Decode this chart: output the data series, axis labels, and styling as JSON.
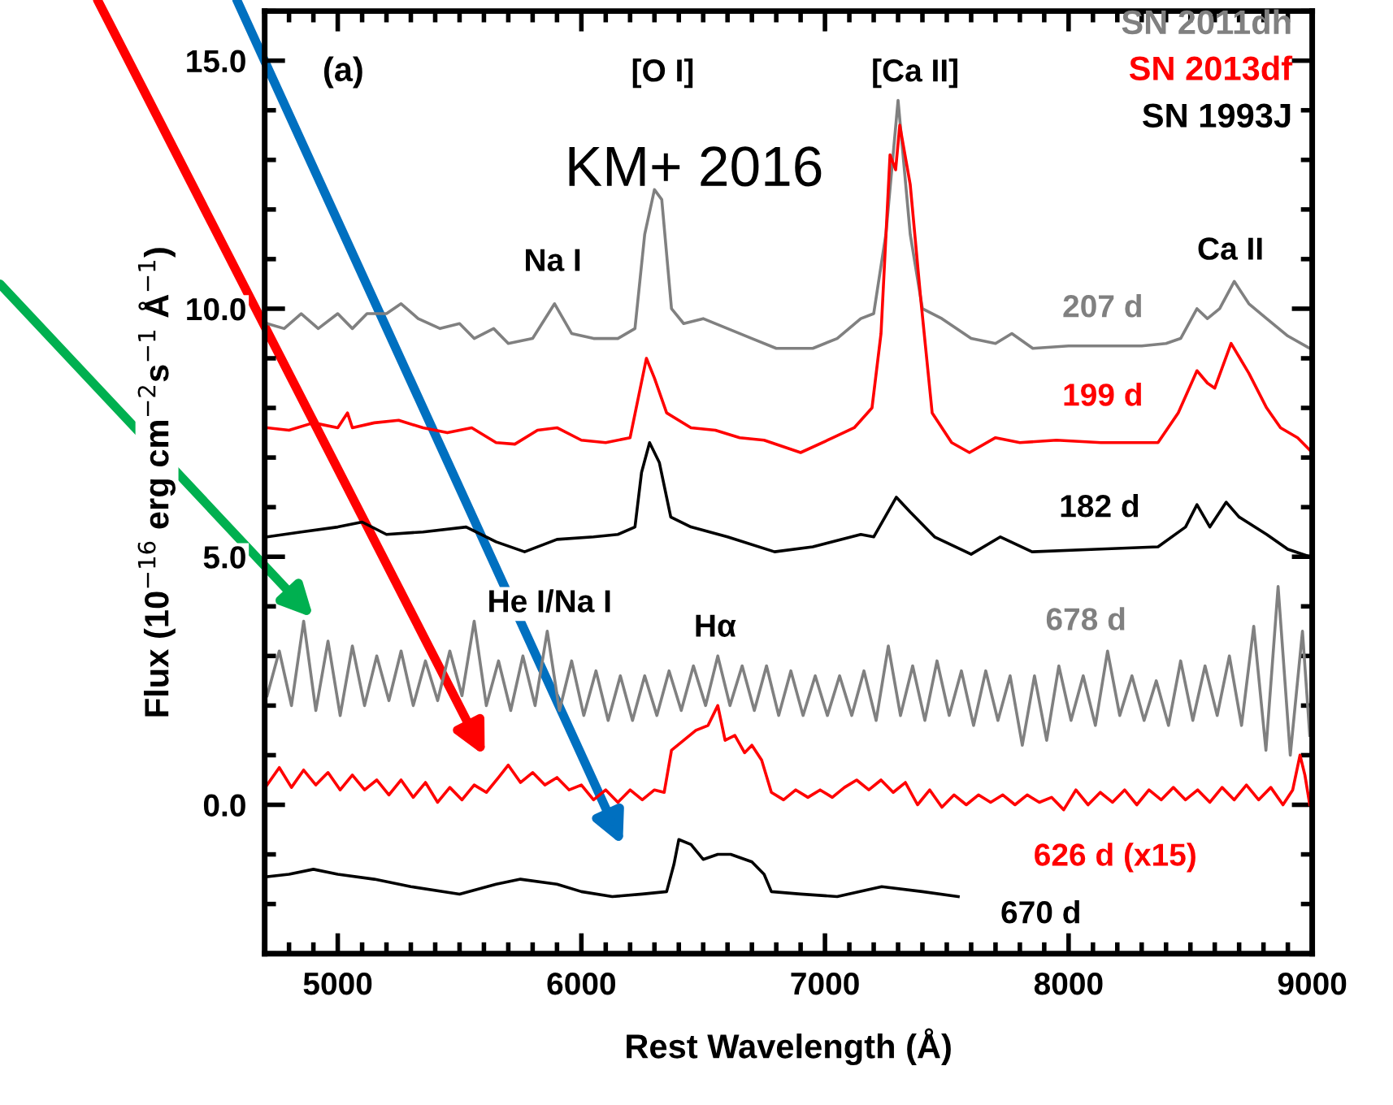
{
  "chart_data": {
    "type": "line",
    "xlabel": "Rest Wavelength (Å)",
    "ylabel": "Flux (10$^{−16}$ erg cm$^{−2}$s$^{−1}$ Å$^{−1}$)",
    "xlim": [
      4700,
      9000
    ],
    "xticks": [
      5000,
      6000,
      7000,
      8000,
      9000
    ],
    "ylim": [
      -3,
      16
    ],
    "yticks": [
      {
        "value": 0,
        "label": "0.0"
      },
      {
        "value": 5,
        "label": "5.0"
      },
      {
        "value": 10,
        "label": "10.0"
      },
      {
        "value": 15,
        "label": "15.0"
      }
    ],
    "grid": false,
    "series": [
      {
        "name": "207 d",
        "color": "#808080",
        "x": [
          4710,
          4780,
          4850,
          4920,
          5000,
          5060,
          5120,
          5200,
          5260,
          5330,
          5420,
          5500,
          5560,
          5640,
          5700,
          5800,
          5890,
          5960,
          6050,
          6150,
          6220,
          6260,
          6300,
          6330,
          6370,
          6420,
          6500,
          6600,
          6700,
          6800,
          6950,
          7050,
          7147,
          7200,
          7250,
          7300,
          7350,
          7400,
          7480,
          7600,
          7700,
          7767,
          7853,
          8000,
          8133,
          8300,
          8400,
          8460,
          8527,
          8570,
          8620,
          8680,
          8740,
          8813,
          8900,
          8990
        ],
        "values": [
          9.7,
          9.6,
          9.9,
          9.6,
          9.9,
          9.6,
          9.9,
          9.9,
          10.1,
          9.8,
          9.6,
          9.7,
          9.4,
          9.6,
          9.3,
          9.4,
          10.1,
          9.5,
          9.4,
          9.4,
          9.6,
          11.5,
          12.4,
          12.2,
          10.0,
          9.7,
          9.8,
          9.6,
          9.4,
          9.2,
          9.2,
          9.4,
          9.8,
          9.9,
          11.5,
          14.2,
          11.5,
          10.0,
          9.8,
          9.4,
          9.3,
          9.5,
          9.2,
          9.25,
          9.25,
          9.25,
          9.3,
          9.4,
          10.0,
          9.8,
          10.0,
          10.55,
          10.1,
          9.8,
          9.45,
          9.2
        ]
      },
      {
        "name": "199 d",
        "color": "#ff0000",
        "x": [
          4710,
          4800,
          4900,
          5000,
          5040,
          5060,
          5150,
          5250,
          5350,
          5450,
          5550,
          5650,
          5727,
          5820,
          5900,
          6000,
          6100,
          6200,
          6267,
          6300,
          6350,
          6450,
          6550,
          6650,
          6750,
          6900,
          7033,
          7120,
          7193,
          7230,
          7267,
          7290,
          7307,
          7350,
          7393,
          7440,
          7520,
          7593,
          7700,
          7800,
          7950,
          8133,
          8250,
          8367,
          8450,
          8527,
          8570,
          8600,
          8667,
          8740,
          8813,
          8870,
          8940,
          8990
        ],
        "values": [
          7.6,
          7.55,
          7.7,
          7.6,
          7.9,
          7.6,
          7.7,
          7.75,
          7.6,
          7.5,
          7.6,
          7.3,
          7.27,
          7.55,
          7.6,
          7.35,
          7.3,
          7.4,
          9.0,
          8.6,
          7.9,
          7.6,
          7.55,
          7.4,
          7.35,
          7.1,
          7.4,
          7.6,
          8.0,
          9.5,
          13.1,
          12.8,
          13.7,
          12.5,
          10.2,
          7.9,
          7.3,
          7.1,
          7.4,
          7.3,
          7.35,
          7.3,
          7.3,
          7.3,
          7.9,
          8.75,
          8.5,
          8.4,
          9.3,
          8.7,
          8.0,
          7.6,
          7.4,
          7.15
        ]
      },
      {
        "name": "182 d",
        "color": "#000000",
        "x": [
          4710,
          4850,
          5000,
          5100,
          5200,
          5350,
          5527,
          5650,
          5767,
          5900,
          6050,
          6150,
          6220,
          6247,
          6280,
          6320,
          6367,
          6450,
          6600,
          6793,
          6950,
          7147,
          7200,
          7293,
          7350,
          7450,
          7600,
          7720,
          7850,
          8113,
          8367,
          8480,
          8527,
          8580,
          8647,
          8700,
          8813,
          8900,
          8990
        ],
        "values": [
          5.4,
          5.5,
          5.6,
          5.7,
          5.45,
          5.5,
          5.6,
          5.3,
          5.1,
          5.35,
          5.4,
          5.45,
          5.6,
          6.7,
          7.3,
          6.9,
          5.8,
          5.6,
          5.4,
          5.1,
          5.2,
          5.45,
          5.4,
          6.2,
          5.9,
          5.4,
          5.05,
          5.4,
          5.1,
          5.15,
          5.2,
          5.6,
          6.05,
          5.6,
          6.1,
          5.8,
          5.45,
          5.15,
          5.0
        ]
      },
      {
        "name": "678 d",
        "color": "#808080",
        "x": [
          4710,
          4760,
          4810,
          4860,
          4910,
          4960,
          5010,
          5060,
          5110,
          5160,
          5210,
          5260,
          5310,
          5360,
          5410,
          5460,
          5510,
          5560,
          5610,
          5660,
          5710,
          5760,
          5810,
          5860,
          5910,
          5960,
          6010,
          6060,
          6110,
          6160,
          6210,
          6260,
          6310,
          6360,
          6410,
          6460,
          6510,
          6560,
          6610,
          6660,
          6710,
          6760,
          6810,
          6860,
          6910,
          6960,
          7010,
          7060,
          7110,
          7160,
          7210,
          7260,
          7310,
          7360,
          7410,
          7460,
          7510,
          7560,
          7610,
          7660,
          7710,
          7760,
          7810,
          7860,
          7910,
          7960,
          8010,
          8060,
          8110,
          8160,
          8210,
          8260,
          8310,
          8360,
          8410,
          8460,
          8510,
          8560,
          8610,
          8660,
          8710,
          8760,
          8810,
          8860,
          8910,
          8960,
          8990
        ],
        "values": [
          2.2,
          3.1,
          2.0,
          3.7,
          1.9,
          3.3,
          1.8,
          3.2,
          2.0,
          3.0,
          2.1,
          3.1,
          2.0,
          2.9,
          2.1,
          3.1,
          2.2,
          3.7,
          2.0,
          2.9,
          1.9,
          3.0,
          2.0,
          3.5,
          1.9,
          2.9,
          1.8,
          2.7,
          1.7,
          2.6,
          1.7,
          2.6,
          1.8,
          2.7,
          1.9,
          2.8,
          2.0,
          3.0,
          2.0,
          2.8,
          1.9,
          2.8,
          1.8,
          2.7,
          1.8,
          2.6,
          1.8,
          2.6,
          1.8,
          2.7,
          1.7,
          3.2,
          1.8,
          2.8,
          1.7,
          2.9,
          1.8,
          2.7,
          1.6,
          2.7,
          1.7,
          2.6,
          1.2,
          2.6,
          1.3,
          2.8,
          1.7,
          2.6,
          1.6,
          3.1,
          1.8,
          2.6,
          1.7,
          2.5,
          1.6,
          2.9,
          1.7,
          2.8,
          1.8,
          3.0,
          1.6,
          3.6,
          1.1,
          4.4,
          1.0,
          3.5,
          1.4
        ]
      },
      {
        "name": "626 d (x15)",
        "color": "#ff0000",
        "x": [
          4710,
          4760,
          4810,
          4860,
          4910,
          4960,
          5010,
          5060,
          5110,
          5160,
          5210,
          5260,
          5310,
          5360,
          5410,
          5460,
          5510,
          5560,
          5610,
          5660,
          5700,
          5750,
          5800,
          5850,
          5900,
          5950,
          6000,
          6050,
          6100,
          6150,
          6200,
          6250,
          6300,
          6340,
          6370,
          6420,
          6470,
          6520,
          6560,
          6590,
          6630,
          6670,
          6700,
          6740,
          6780,
          6830,
          6880,
          6930,
          6980,
          7030,
          7080,
          7130,
          7180,
          7230,
          7280,
          7330,
          7380,
          7430,
          7480,
          7530,
          7580,
          7630,
          7680,
          7730,
          7780,
          7830,
          7880,
          7930,
          7980,
          8030,
          8080,
          8130,
          8180,
          8230,
          8280,
          8330,
          8380,
          8430,
          8480,
          8530,
          8580,
          8630,
          8680,
          8730,
          8780,
          8830,
          8880,
          8920,
          8950,
          8970,
          8990
        ],
        "values": [
          0.4,
          0.75,
          0.35,
          0.7,
          0.4,
          0.65,
          0.3,
          0.6,
          0.3,
          0.5,
          0.2,
          0.5,
          0.15,
          0.45,
          0.05,
          0.35,
          0.1,
          0.4,
          0.25,
          0.55,
          0.8,
          0.45,
          0.65,
          0.4,
          0.55,
          0.3,
          0.4,
          0.1,
          0.3,
          0.05,
          0.3,
          0.1,
          0.3,
          0.25,
          1.1,
          1.3,
          1.5,
          1.6,
          2.0,
          1.3,
          1.4,
          1.05,
          1.2,
          0.9,
          0.25,
          0.1,
          0.3,
          0.15,
          0.3,
          0.15,
          0.35,
          0.5,
          0.3,
          0.5,
          0.25,
          0.45,
          0.0,
          0.3,
          -0.05,
          0.2,
          0.0,
          0.2,
          0.05,
          0.2,
          0.0,
          0.2,
          0.05,
          0.15,
          -0.1,
          0.3,
          0.0,
          0.25,
          0.05,
          0.3,
          0.0,
          0.3,
          0.1,
          0.35,
          0.1,
          0.3,
          0.05,
          0.35,
          0.1,
          0.4,
          0.1,
          0.35,
          0.0,
          0.3,
          1.0,
          0.6,
          0.0
        ]
      },
      {
        "name": "670 d",
        "color": "#000000",
        "x": [
          4710,
          4800,
          4900,
          5000,
          5150,
          5300,
          5500,
          5650,
          5750,
          5900,
          6000,
          6127,
          6250,
          6350,
          6380,
          6400,
          6450,
          6500,
          6560,
          6613,
          6700,
          6750,
          6780,
          6900,
          7050,
          7233,
          7400,
          7547
        ],
        "values": [
          -1.45,
          -1.4,
          -1.3,
          -1.4,
          -1.5,
          -1.65,
          -1.8,
          -1.6,
          -1.5,
          -1.6,
          -1.75,
          -1.85,
          -1.8,
          -1.75,
          -1.2,
          -0.7,
          -0.8,
          -1.1,
          -1.0,
          -1.0,
          -1.15,
          -1.4,
          -1.75,
          -1.8,
          -1.85,
          -1.65,
          -1.75,
          -1.85
        ]
      }
    ],
    "annotations": [
      "(a)",
      "KM+ 2016",
      "SN 2011dh",
      "SN 2013df",
      "SN 1993J",
      "[O I]",
      "[Ca II]",
      "Na I",
      "Ca II",
      "He I/Na I",
      "Hα"
    ]
  }
}
